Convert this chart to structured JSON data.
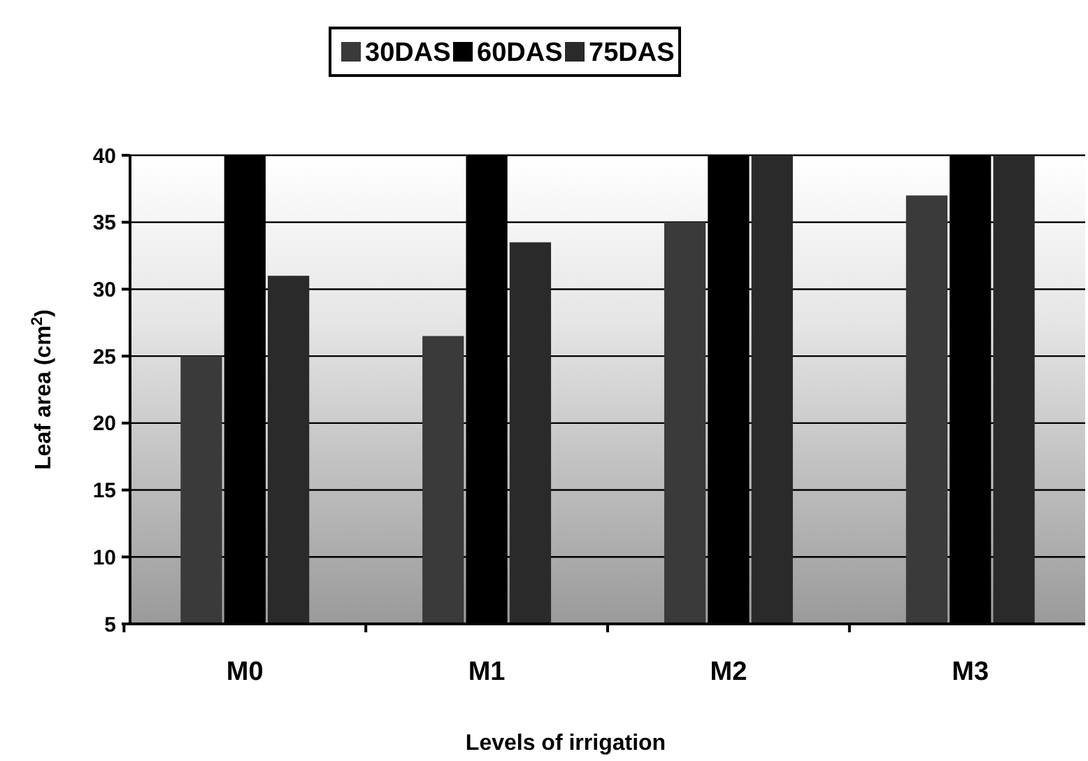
{
  "chart_data": {
    "type": "bar",
    "xlabel": "Levels of irrigation",
    "ylabel": "Leaf area (cm$^{2}$)",
    "categories": [
      "M0",
      "M1",
      "M2",
      "M3"
    ],
    "series": [
      {
        "name": "30DAS",
        "color": "#3a3a3a",
        "values": [
          25,
          26.5,
          35,
          37
        ]
      },
      {
        "name": "60DAS",
        "color": "#000000",
        "values": [
          40,
          40,
          40,
          40
        ]
      },
      {
        "name": "75DAS",
        "color": "#2a2a2a",
        "values": [
          31,
          33.5,
          40,
          40
        ]
      }
    ],
    "ylim": [
      5,
      40
    ],
    "yticks": [
      5,
      10,
      15,
      20,
      25,
      30,
      35,
      40
    ],
    "grid": "y",
    "legend": "top"
  }
}
